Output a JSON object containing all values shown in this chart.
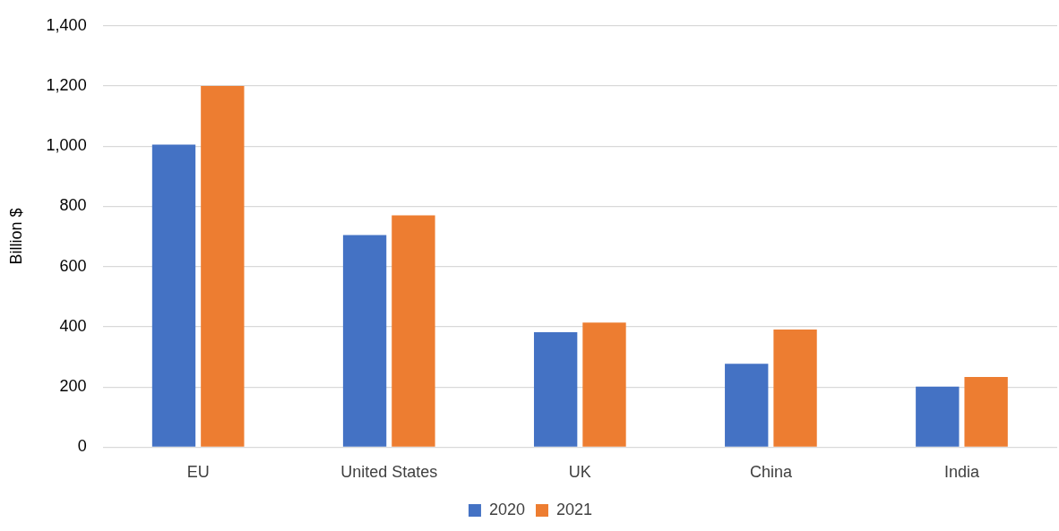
{
  "chart_data": {
    "type": "bar",
    "ylabel": "Billion $",
    "categories": [
      "EU",
      "United States",
      "UK",
      "China",
      "India"
    ],
    "series": [
      {
        "name": "2020",
        "color": "#4472c4",
        "values": [
          1005,
          705,
          382,
          277,
          201
        ]
      },
      {
        "name": "2021",
        "color": "#ed7d31",
        "values": [
          1200,
          770,
          414,
          391,
          233
        ]
      }
    ],
    "ylim": [
      0,
      1400
    ],
    "yticks": [
      0,
      200,
      400,
      600,
      800,
      {
        "value": 1000,
        "label": "1,000"
      },
      {
        "value": 1200,
        "label": "1,200"
      },
      {
        "value": 1400,
        "label": "1,400"
      }
    ],
    "grid": "y",
    "legend": "bottom"
  }
}
